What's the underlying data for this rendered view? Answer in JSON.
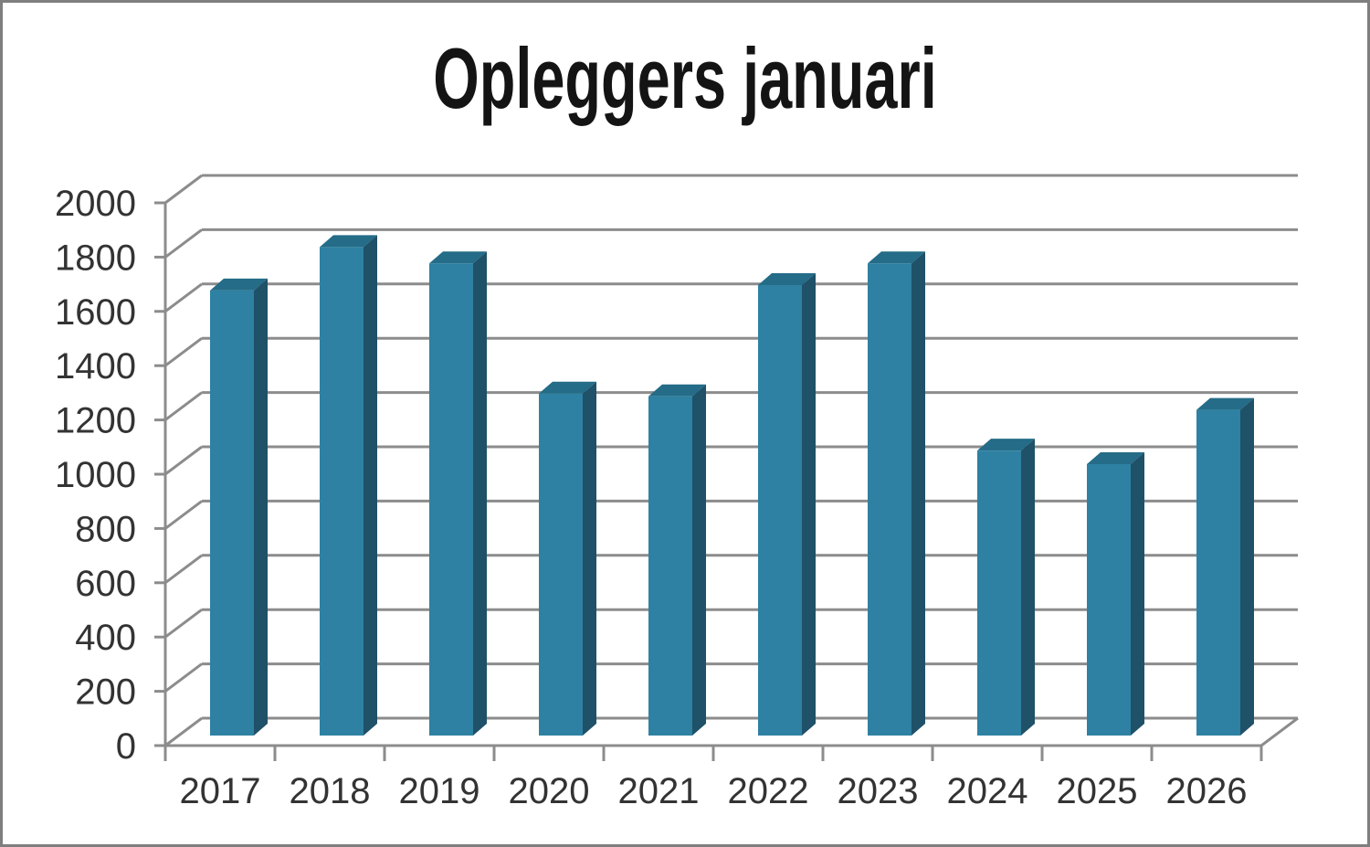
{
  "frame": {
    "border_color": "#7f7f7f",
    "background": "#ffffff"
  },
  "chart_data": {
    "type": "bar",
    "variant": "3d-column",
    "title": "Opleggers januari",
    "categories": [
      "2017",
      "2018",
      "2019",
      "2020",
      "2021",
      "2022",
      "2023",
      "2024",
      "2025",
      "2026"
    ],
    "values": [
      1640,
      1800,
      1740,
      1260,
      1250,
      1660,
      1740,
      1050,
      1000,
      1200
    ],
    "xlabel": "",
    "ylabel": "",
    "ylim": [
      0,
      2000
    ],
    "ytick_step": 200,
    "ytick_labels": [
      "0",
      "200",
      "400",
      "600",
      "800",
      "1000",
      "1200",
      "1400",
      "1600",
      "1800",
      "2000"
    ],
    "grid": true,
    "legend": false,
    "colors": {
      "bar_front": "#2E81A2",
      "bar_top": "#246C87",
      "bar_side": "#1F5168",
      "gridline": "#8C8C8C",
      "axis_line": "#8C8C8C",
      "tick_label": "#333333",
      "title": "#141414"
    }
  }
}
